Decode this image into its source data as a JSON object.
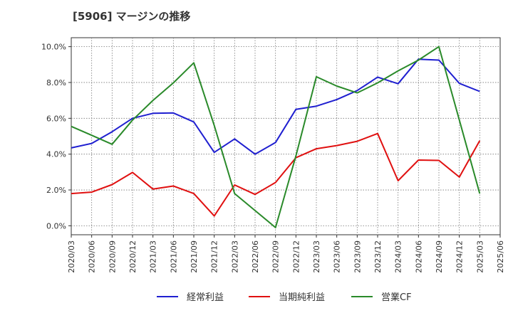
{
  "chart_data": {
    "type": "line",
    "title": "[5906]  マージンの推移",
    "x": [
      "2020/03",
      "2020/06",
      "2020/09",
      "2020/12",
      "2021/03",
      "2021/06",
      "2021/09",
      "2021/12",
      "2022/03",
      "2022/06",
      "2022/09",
      "2022/12",
      "2023/03",
      "2023/06",
      "2023/09",
      "2023/12",
      "2024/03",
      "2024/06",
      "2024/09",
      "2024/12",
      "2025/03",
      "2025/06"
    ],
    "y_ticks": [
      "0.0%",
      "2.0%",
      "4.0%",
      "6.0%",
      "8.0%",
      "10.0%"
    ],
    "ylim": [
      -0.5,
      10.5
    ],
    "grid": true,
    "legend_position": "bottom",
    "series": [
      {
        "name": "経常利益",
        "color": "#1f1fd0",
        "values": [
          4.35,
          4.6,
          5.25,
          6.0,
          6.28,
          6.3,
          5.8,
          4.1,
          4.85,
          4.0,
          4.65,
          6.5,
          6.68,
          7.05,
          7.55,
          8.3,
          7.93,
          9.3,
          9.25,
          7.95,
          7.5,
          null
        ]
      },
      {
        "name": "当期純利益",
        "color": "#e01010",
        "values": [
          1.8,
          1.88,
          2.3,
          2.98,
          2.05,
          2.22,
          1.8,
          0.55,
          2.28,
          1.75,
          2.42,
          3.8,
          4.3,
          4.48,
          4.72,
          5.15,
          2.52,
          3.67,
          3.65,
          2.72,
          4.75,
          null
        ]
      },
      {
        "name": "営業CF",
        "color": "#2a8a2a",
        "values": [
          5.55,
          5.05,
          4.55,
          5.9,
          7.0,
          7.98,
          9.1,
          5.6,
          1.8,
          0.85,
          -0.1,
          3.9,
          8.32,
          7.8,
          7.42,
          7.98,
          8.65,
          9.25,
          10.0,
          5.9,
          1.8,
          null
        ]
      }
    ]
  }
}
